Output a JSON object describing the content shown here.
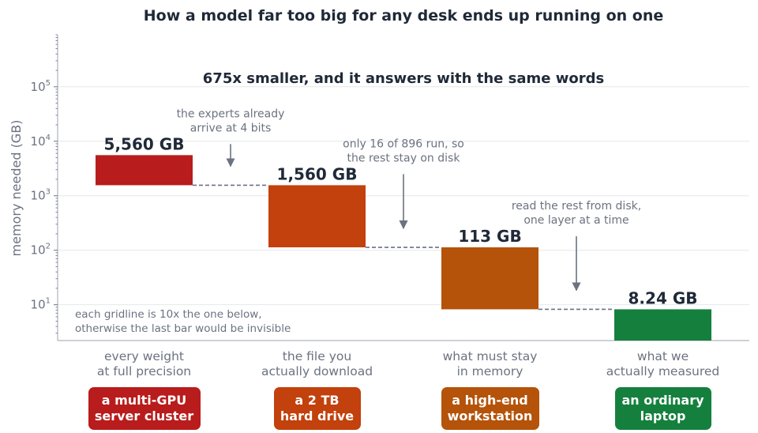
{
  "chart_data": {
    "type": "bar",
    "title": "How a model far too big for any desk ends up running on one",
    "subtitle": "675x smaller, and it answers with the same words",
    "ylabel": "memory needed (GB)",
    "yscale": "log",
    "ylim": [
      2.2,
      900000
    ],
    "y_ticks": [
      {
        "value": 10,
        "base": "10",
        "exp": "1"
      },
      {
        "value": 100,
        "base": "10",
        "exp": "2"
      },
      {
        "value": 1000,
        "base": "10",
        "exp": "3"
      },
      {
        "value": 10000,
        "base": "10",
        "exp": "4"
      },
      {
        "value": 100000,
        "base": "10",
        "exp": "5"
      }
    ],
    "grid": true,
    "categories": [
      [
        "every weight",
        "at full precision"
      ],
      [
        "the file you",
        "actually download"
      ],
      [
        "what must stay",
        "in memory"
      ],
      [
        "what we",
        "actually measured"
      ]
    ],
    "bars": [
      {
        "from": 1560,
        "to": 5560,
        "label": "5,560 GB",
        "color": "#b91c1c"
      },
      {
        "from": 113,
        "to": 1560,
        "label": "1,560 GB",
        "color": "#c2410c"
      },
      {
        "from": 8.24,
        "to": 113,
        "label": "113 GB",
        "color": "#b45309"
      },
      {
        "from": 2.2,
        "to": 8.24,
        "label": "8.24 GB",
        "color": "#15803d"
      }
    ],
    "annotations": [
      {
        "lines": [
          "the experts already",
          "arrive at 4 bits"
        ]
      },
      {
        "lines": [
          "only 16 of 896 run, so",
          "the rest stay on disk"
        ]
      },
      {
        "lines": [
          "read the rest from disk,",
          "one layer at a time"
        ]
      }
    ],
    "footnote": [
      "each gridline is 10x the one below,",
      "otherwise the last bar would be invisible"
    ],
    "badges": [
      {
        "lines": [
          "a multi-GPU",
          "server cluster"
        ],
        "color": "#b91c1c"
      },
      {
        "lines": [
          "a 2 TB",
          "hard drive"
        ],
        "color": "#c2410c"
      },
      {
        "lines": [
          "a high-end",
          "workstation"
        ],
        "color": "#b45309"
      },
      {
        "lines": [
          "an ordinary",
          "laptop"
        ],
        "color": "#15803d"
      }
    ]
  }
}
